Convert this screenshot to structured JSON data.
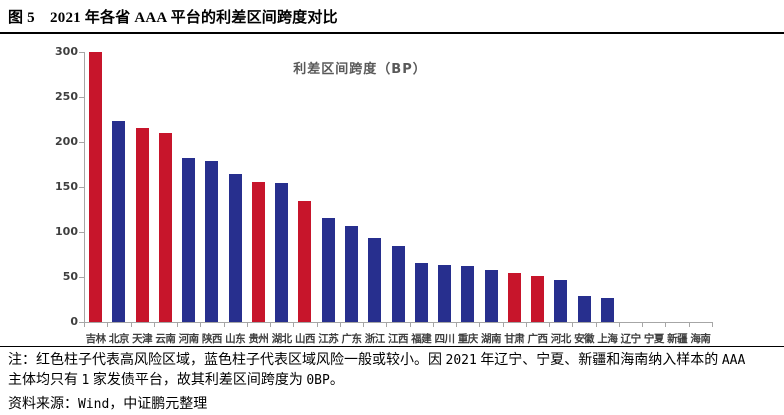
{
  "page": {
    "title": "图 5　2021 年各省 AAA 平台的利差区间跨度对比",
    "note_line1": "注：红色柱子代表高风险区域，蓝色柱子代表区域风险一般或较小。因 2021 年辽宁、宁夏、新疆和海南纳入样本的 AAA",
    "note_line2": "主体均只有 1 家发债平台，故其利差区间跨度为 0BP。",
    "source": "资料来源：Wind，中证鹏元整理"
  },
  "chart_data": {
    "type": "bar",
    "title": "利差区间跨度（BP）",
    "ylabel": "利差区间跨度",
    "unit": "BP",
    "categories": [
      "吉林",
      "北京",
      "天津",
      "云南",
      "河南",
      "陕西",
      "山东",
      "贵州",
      "湖北",
      "山西",
      "江苏",
      "广东",
      "浙江",
      "江西",
      "福建",
      "四川",
      "重庆",
      "湖南",
      "甘肃",
      "广西",
      "河北",
      "安徽",
      "上海",
      "辽宁",
      "宁夏",
      "新疆",
      "海南"
    ],
    "values": [
      300,
      223,
      216,
      210,
      182,
      179,
      164,
      156,
      155,
      134,
      116,
      107,
      93,
      84,
      66,
      63,
      62,
      58,
      54,
      51,
      47,
      29,
      27,
      0,
      0,
      0,
      0
    ],
    "risk": [
      "high",
      "normal",
      "high",
      "high",
      "normal",
      "normal",
      "normal",
      "high",
      "normal",
      "high",
      "normal",
      "normal",
      "normal",
      "normal",
      "normal",
      "normal",
      "normal",
      "normal",
      "high",
      "high",
      "normal",
      "normal",
      "normal",
      "normal",
      "normal",
      "normal",
      "normal"
    ],
    "colors": {
      "high_risk": "#c7152b",
      "low_risk": "#272f8e",
      "axis": "#a6a6a6",
      "tick_label": "#3f3f3f",
      "legend_text": "#595959"
    },
    "ylim": [
      0,
      300
    ],
    "yticks": [
      0,
      50,
      100,
      150,
      200,
      250,
      300
    ],
    "grid": false,
    "legend_position": "top-center"
  }
}
